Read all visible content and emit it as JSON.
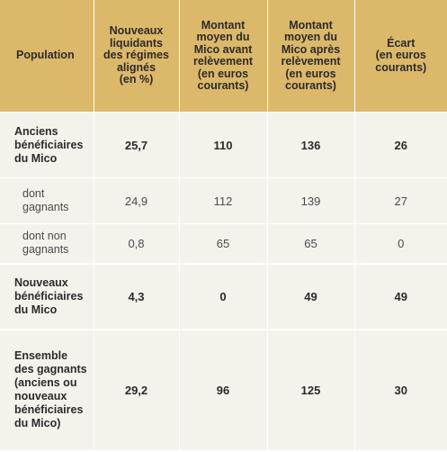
{
  "table": {
    "headers": [
      "Population",
      "Nouveaux\nliquidants\ndes régimes\nalignés\n(en %)",
      "Montant\nmoyen du\nMico avant\nrelèvement\n(en euros\ncourants)",
      "Montant\nmoyen du\nMico après\nrelèvement\n(en euros\ncourants)",
      "Écart\n(en euros\ncourants)"
    ],
    "rows": [
      {
        "label": "Anciens\nbénéficiaires\ndu Mico",
        "values": [
          "25,7",
          "110",
          "136",
          "26"
        ]
      },
      {
        "label": "dont\ngagnants",
        "values": [
          "24,9",
          "112",
          "139",
          "27"
        ]
      },
      {
        "label": "dont non\ngagnants",
        "values": [
          "0,8",
          "65",
          "65",
          "0"
        ]
      },
      {
        "label": "Nouveaux\nbénéficiaires\ndu Mico",
        "values": [
          "4,3",
          "0",
          "49",
          "49"
        ]
      },
      {
        "label": "Ensemble\ndes gagnants\n(anciens ou\nnouveaux\nbénéficiaires\ndu Mico)",
        "values": [
          "29,2",
          "96",
          "125",
          "30"
        ]
      }
    ]
  }
}
